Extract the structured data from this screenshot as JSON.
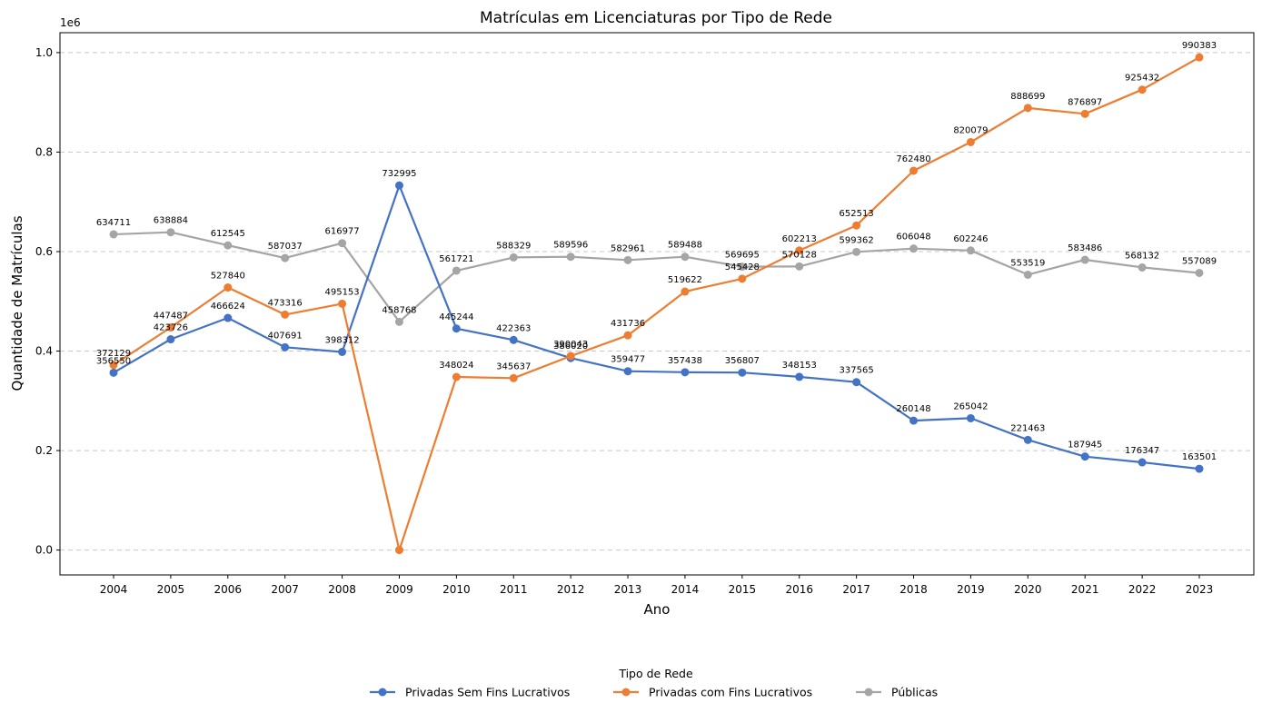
{
  "chart_data": {
    "type": "line",
    "title": "Matrículas em Licenciaturas por Tipo de Rede",
    "xlabel": "Ano",
    "ylabel": "Quantidade de Matrículas",
    "y_multiplier_label": "1e6",
    "ylim": [
      -50000,
      1040000
    ],
    "y_ticks": [
      0,
      200000,
      400000,
      600000,
      800000,
      1000000
    ],
    "y_tick_labels": [
      "0.0",
      "0.2",
      "0.4",
      "0.6",
      "0.8",
      "1.0"
    ],
    "grid": "horizontal-dashed",
    "legend_title": "Tipo de Rede",
    "legend_placement": "bottom-center",
    "x": [
      "2004",
      "2005",
      "2006",
      "2007",
      "2008",
      "2009",
      "2010",
      "2011",
      "2012",
      "2013",
      "2014",
      "2015",
      "2016",
      "2017",
      "2018",
      "2019",
      "2020",
      "2021",
      "2022",
      "2023"
    ],
    "series": [
      {
        "name": "Privadas Sem Fins Lucrativos",
        "color": "#4472c4",
        "values": [
          356550,
          423726,
          466624,
          407691,
          398312,
          732995,
          445244,
          422363,
          386020,
          359477,
          357438,
          356807,
          348153,
          337565,
          260148,
          265042,
          221463,
          187945,
          176347,
          163501
        ]
      },
      {
        "name": "Privadas com Fins Lucrativos",
        "color": "#ed7d31",
        "values": [
          372129,
          447487,
          527840,
          473316,
          495153,
          0,
          348024,
          345637,
          390043,
          431736,
          519622,
          545428,
          602213,
          652513,
          762480,
          820079,
          888699,
          876897,
          925432,
          990383
        ]
      },
      {
        "name": "Públicas",
        "color": "#a5a5a5",
        "values": [
          634711,
          638884,
          612545,
          587037,
          616977,
          458768,
          561721,
          588329,
          589596,
          582961,
          589488,
          569695,
          570128,
          599362,
          606048,
          602246,
          553519,
          583486,
          568132,
          557089
        ]
      }
    ],
    "point_labels": [
      [
        "356550",
        "423726",
        "466624",
        "407691",
        "398312",
        "732995",
        "445244",
        "422363",
        "386020",
        "359477",
        "357438",
        "356807",
        "348153",
        "337565",
        "260148",
        "265042",
        "221463",
        "187945",
        "176347",
        "163501"
      ],
      [
        "372129",
        "447487",
        "527840",
        "473316",
        "495153",
        "",
        "348024",
        "345637",
        "390043",
        "431736",
        "519622",
        "545428",
        "602213",
        "652513",
        "762480",
        "820079",
        "888699",
        "876897",
        "925432",
        "990383"
      ],
      [
        "634711",
        "638884",
        "612545",
        "587037",
        "616977",
        "458768",
        "561721",
        "588329",
        "589596",
        "582961",
        "589488",
        "569695",
        "570128",
        "599362",
        "606048",
        "602246",
        "553519",
        "583486",
        "568132",
        "557089"
      ]
    ]
  }
}
